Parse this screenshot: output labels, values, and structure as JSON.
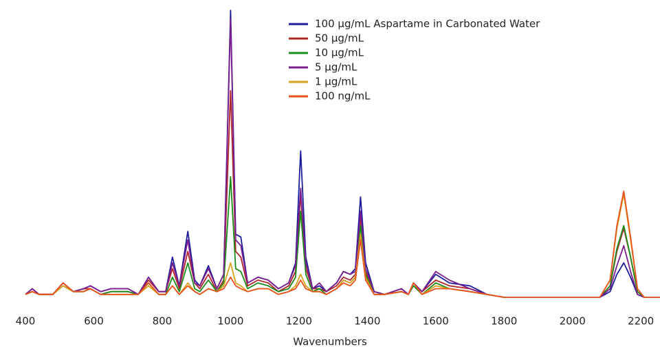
{
  "chart_data": {
    "type": "line",
    "x_label": "Wavenumbers",
    "x": [
      400,
      420,
      440,
      480,
      510,
      540,
      570,
      590,
      620,
      650,
      700,
      730,
      760,
      790,
      810,
      830,
      850,
      875,
      895,
      910,
      935,
      960,
      980,
      1000,
      1015,
      1030,
      1050,
      1080,
      1110,
      1140,
      1170,
      1190,
      1205,
      1220,
      1240,
      1260,
      1280,
      1310,
      1330,
      1350,
      1365,
      1380,
      1395,
      1420,
      1450,
      1500,
      1520,
      1535,
      1560,
      1600,
      1640,
      1700,
      1750,
      1800,
      1900,
      2000,
      2080,
      2110,
      2130,
      2150,
      2170,
      2190,
      2210,
      2240,
      2256
    ],
    "series": [
      {
        "name": "100 µg/mL Aspartame in Carbonated Water",
        "color": "#1c1c9c",
        "values": [
          1,
          3,
          1,
          1,
          5,
          2,
          3,
          4,
          2,
          3,
          3,
          1,
          7,
          2,
          2,
          14,
          4,
          23,
          6,
          4,
          11,
          3,
          8,
          100,
          22,
          21,
          5,
          7,
          6,
          3,
          5,
          12,
          51,
          14,
          3,
          4,
          2,
          5,
          9,
          8,
          10,
          35,
          12,
          2,
          1,
          3,
          1,
          5,
          2,
          8,
          5,
          4,
          1,
          0,
          0,
          0,
          0,
          2,
          8,
          12,
          7,
          1,
          0,
          0,
          0
        ]
      },
      {
        "name": "50 µg/mL",
        "color": "#b0262a",
        "values": [
          1,
          2,
          1,
          1,
          5,
          2,
          3,
          3,
          1,
          2,
          2,
          1,
          6,
          2,
          2,
          10,
          3,
          16,
          5,
          3,
          8,
          2,
          6,
          72,
          16,
          14,
          4,
          6,
          5,
          2,
          4,
          9,
          36,
          10,
          3,
          3,
          2,
          4,
          7,
          6,
          8,
          28,
          9,
          2,
          1,
          2,
          1,
          5,
          2,
          6,
          4,
          3,
          1,
          0,
          0,
          0,
          0,
          4,
          16,
          24,
          14,
          2,
          0,
          0,
          0
        ]
      },
      {
        "name": "10 µg/mL",
        "color": "#1b8a1b",
        "values": [
          1,
          2,
          1,
          1,
          4,
          2,
          2,
          3,
          1,
          2,
          2,
          1,
          5,
          1,
          1,
          7,
          2,
          12,
          3,
          2,
          6,
          2,
          5,
          42,
          10,
          9,
          3,
          5,
          4,
          2,
          3,
          7,
          30,
          8,
          2,
          3,
          1,
          3,
          6,
          5,
          7,
          25,
          8,
          1,
          1,
          2,
          1,
          4,
          1,
          5,
          3,
          2,
          1,
          0,
          0,
          0,
          0,
          4,
          17,
          25,
          14,
          2,
          0,
          0,
          0
        ]
      },
      {
        "name": "5 µg/mL",
        "color": "#7a1f8e",
        "values": [
          1,
          3,
          1,
          1,
          5,
          2,
          3,
          4,
          2,
          3,
          3,
          1,
          7,
          2,
          2,
          12,
          4,
          20,
          5,
          4,
          10,
          3,
          8,
          97,
          20,
          18,
          5,
          7,
          6,
          3,
          5,
          11,
          38,
          12,
          3,
          5,
          2,
          5,
          9,
          8,
          9,
          30,
          10,
          2,
          1,
          3,
          1,
          5,
          2,
          9,
          6,
          3,
          1,
          0,
          0,
          0,
          0,
          3,
          11,
          18,
          9,
          1,
          0,
          0,
          0
        ]
      },
      {
        "name": "1 µg/mL",
        "color": "#d8a31a",
        "values": [
          1,
          2,
          1,
          1,
          4,
          2,
          2,
          3,
          1,
          1,
          1,
          1,
          4,
          1,
          1,
          4,
          1,
          5,
          2,
          1,
          3,
          2,
          4,
          12,
          5,
          4,
          2,
          3,
          3,
          1,
          2,
          4,
          8,
          4,
          2,
          2,
          1,
          3,
          6,
          5,
          7,
          22,
          7,
          1,
          1,
          2,
          1,
          5,
          1,
          4,
          3,
          2,
          1,
          0,
          0,
          0,
          0,
          6,
          24,
          36,
          20,
          3,
          0,
          0,
          0
        ]
      },
      {
        "name": "100 ng/mL",
        "color": "#e8521f",
        "values": [
          1,
          2,
          1,
          1,
          5,
          2,
          2,
          3,
          1,
          1,
          1,
          1,
          5,
          1,
          1,
          4,
          1,
          4,
          2,
          1,
          3,
          2,
          3,
          7,
          4,
          3,
          2,
          3,
          3,
          1,
          2,
          3,
          6,
          3,
          2,
          2,
          1,
          3,
          5,
          4,
          6,
          20,
          6,
          1,
          1,
          2,
          1,
          5,
          1,
          3,
          3,
          2,
          1,
          0,
          0,
          0,
          0,
          6,
          25,
          37,
          21,
          3,
          0,
          0,
          0
        ]
      }
    ],
    "xlim": [
      396,
      2256
    ],
    "xticks": [
      400,
      600,
      800,
      1000,
      1200,
      1400,
      1600,
      1800,
      2000,
      2200
    ],
    "ylim": [
      0,
      100
    ],
    "grid": false,
    "legend": "top-right"
  }
}
